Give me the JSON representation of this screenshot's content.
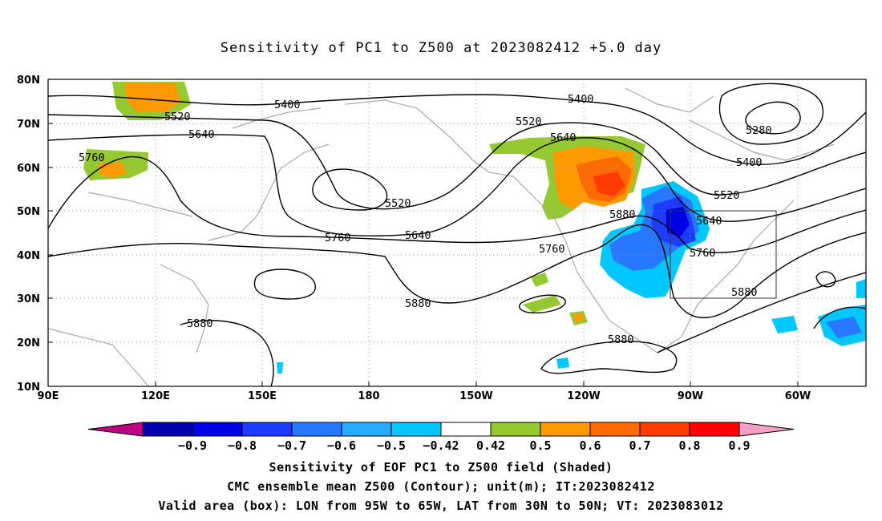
{
  "title": "Sensitivity of PC1 to Z500 at 2023082412 +5.0 day",
  "map": {
    "lon_labels": [
      "90E",
      "120E",
      "150E",
      "180",
      "150W",
      "120W",
      "90W",
      "60W"
    ],
    "lat_labels": [
      "80N",
      "70N",
      "60N",
      "50N",
      "40N",
      "30N",
      "20N",
      "10N"
    ],
    "contour_labels": [
      {
        "text": "5400",
        "id": "c5400a"
      },
      {
        "text": "5400",
        "id": "c5400b"
      },
      {
        "text": "5400",
        "id": "c5400c"
      },
      {
        "text": "5520",
        "id": "c5520a"
      },
      {
        "text": "5520",
        "id": "c5520b"
      },
      {
        "text": "5520",
        "id": "c5520c"
      },
      {
        "text": "5520",
        "id": "c5520d"
      },
      {
        "text": "5640",
        "id": "c5640a"
      },
      {
        "text": "5640",
        "id": "c5640b"
      },
      {
        "text": "5640",
        "id": "c5640c"
      },
      {
        "text": "5640",
        "id": "c5640d"
      },
      {
        "text": "5760",
        "id": "c5760a"
      },
      {
        "text": "5760",
        "id": "c5760b"
      },
      {
        "text": "5760",
        "id": "c5760c"
      },
      {
        "text": "5760",
        "id": "c5760d"
      },
      {
        "text": "5880",
        "id": "c5880a"
      },
      {
        "text": "5880",
        "id": "c5880b"
      },
      {
        "text": "5880",
        "id": "c5880c"
      },
      {
        "text": "5880",
        "id": "c5880d"
      },
      {
        "text": "5880",
        "id": "c5880e"
      },
      {
        "text": "5280",
        "id": "c5280a"
      }
    ],
    "valid_box": {
      "lon_from": "95W",
      "lon_to": "65W",
      "lat_from": "30N",
      "lat_to": "50N"
    }
  },
  "colorbar": {
    "labels": [
      "-0.9",
      "-0.8",
      "-0.7",
      "-0.6",
      "-0.5",
      "-0.42",
      "0.42",
      "0.5",
      "0.6",
      "0.7",
      "0.8",
      "0.9"
    ],
    "colors": [
      "#c00080",
      "#0000b0",
      "#0000e6",
      "#1e3cff",
      "#2878ff",
      "#28aaff",
      "#00c8ff",
      "#ffffff",
      "#96c832",
      "#ff9900",
      "#ff6a00",
      "#ff3c00",
      "#ff0000",
      "#f6a0c8"
    ]
  },
  "caption": {
    "line1": "Sensitivity of EOF PC1 to Z500 field (Shaded)",
    "line2": "CMC ensemble mean Z500 (Contour); unit(m); IT:2023082412",
    "line3": "Valid area (box): LON from 95W to 65W, LAT from 30N to 50N; VT: 2023083012"
  }
}
